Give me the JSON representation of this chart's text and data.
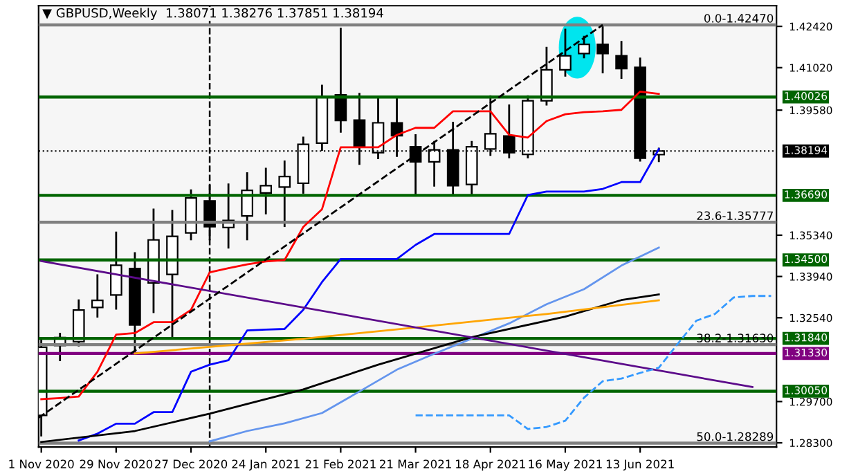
{
  "chart_data": {
    "type": "candlestick",
    "title": "▼ GBPUSD,Weekly  1.38071 1.38276 1.37851 1.38194",
    "x": [
      "2020-11-01",
      "2020-11-08",
      "2020-11-15",
      "2020-11-22",
      "2020-11-29",
      "2020-12-06",
      "2020-12-13",
      "2020-12-20",
      "2020-12-27",
      "2021-01-03",
      "2021-01-10",
      "2021-01-17",
      "2021-01-24",
      "2021-01-31",
      "2021-02-07",
      "2021-02-14",
      "2021-02-21",
      "2021-02-28",
      "2021-03-07",
      "2021-03-14",
      "2021-03-21",
      "2021-03-28",
      "2021-04-04",
      "2021-04-11",
      "2021-04-18",
      "2021-04-25",
      "2021-05-02",
      "2021-05-09",
      "2021-05-16",
      "2021-05-23",
      "2021-05-30",
      "2021-06-06",
      "2021-06-13",
      "2021-06-20"
    ],
    "ohlc": [
      [
        1.2923,
        1.3177,
        1.2855,
        1.3154
      ],
      [
        1.316,
        1.32,
        1.311,
        1.3187
      ],
      [
        1.3173,
        1.3313,
        1.316,
        1.328
      ],
      [
        1.3289,
        1.3398,
        1.3258,
        1.3313
      ],
      [
        1.3331,
        1.3543,
        1.3285,
        1.3432
      ],
      [
        1.3421,
        1.3473,
        1.3133,
        1.323
      ],
      [
        1.3372,
        1.3621,
        1.3273,
        1.3518
      ],
      [
        1.3401,
        1.3616,
        1.3188,
        1.353
      ],
      [
        1.3542,
        1.3686,
        1.352,
        1.366
      ],
      [
        1.365,
        1.3702,
        1.352,
        1.3563
      ],
      [
        1.356,
        1.3706,
        1.3492,
        1.3584
      ],
      [
        1.3599,
        1.3744,
        1.352,
        1.3686
      ],
      [
        1.3677,
        1.3759,
        1.3608,
        1.3702
      ],
      [
        1.3697,
        1.3784,
        1.3565,
        1.3733
      ],
      [
        1.371,
        1.3865,
        1.3678,
        1.3842
      ],
      [
        1.3846,
        1.4041,
        1.3823,
        1.4002
      ],
      [
        1.401,
        1.4234,
        1.3885,
        1.3923
      ],
      [
        1.3924,
        1.4013,
        1.3776,
        1.3834
      ],
      [
        1.3814,
        1.4002,
        1.3795,
        1.3915
      ],
      [
        1.3915,
        1.3997,
        1.3803,
        1.3871
      ],
      [
        1.3834,
        1.3873,
        1.367,
        1.3783
      ],
      [
        1.3783,
        1.385,
        1.3702,
        1.3823
      ],
      [
        1.3823,
        1.3915,
        1.367,
        1.3702
      ],
      [
        1.3706,
        1.385,
        1.367,
        1.3834
      ],
      [
        1.3826,
        1.4005,
        1.3806,
        1.3878
      ],
      [
        1.387,
        1.3974,
        1.3798,
        1.3814
      ],
      [
        1.3808,
        1.4005,
        1.3798,
        1.399
      ],
      [
        1.399,
        1.4169,
        1.3977,
        1.4095
      ],
      [
        1.4095,
        1.4231,
        1.4075,
        1.4142
      ],
      [
        1.415,
        1.4207,
        1.4137,
        1.4181
      ],
      [
        1.4181,
        1.4247,
        1.4086,
        1.415
      ],
      [
        1.4142,
        1.4189,
        1.4067,
        1.4099
      ],
      [
        1.4103,
        1.4133,
        1.3787,
        1.3795
      ],
      [
        1.38071,
        1.38276,
        1.37851,
        1.38194
      ]
    ],
    "series": [
      {
        "type": "line",
        "color": "#ff0000",
        "line_style": "solid",
        "x": [
          "2020-11-01",
          "2020-11-08",
          "2020-11-15",
          "2020-11-22",
          "2020-11-29",
          "2020-12-06",
          "2020-12-13",
          "2020-12-20",
          "2020-12-27",
          "2021-01-03",
          "2021-01-10",
          "2021-01-17",
          "2021-01-24",
          "2021-01-31",
          "2021-02-07",
          "2021-02-14",
          "2021-02-21",
          "2021-02-28",
          "2021-03-07",
          "2021-03-14",
          "2021-03-21",
          "2021-03-28",
          "2021-04-04",
          "2021-04-11",
          "2021-04-18",
          "2021-04-25",
          "2021-05-02",
          "2021-05-09",
          "2021-05-16",
          "2021-05-23",
          "2021-05-30",
          "2021-06-06",
          "2021-06-13",
          "2021-06-20"
        ],
        "values": [
          1.2978,
          1.2982,
          1.2987,
          1.3071,
          1.3197,
          1.3202,
          1.3239,
          1.3239,
          1.3281,
          1.3408,
          1.3422,
          1.3435,
          1.3445,
          1.345,
          1.3562,
          1.3622,
          1.3832,
          1.3832,
          1.3832,
          1.3874,
          1.3898,
          1.3898,
          1.3954,
          1.3954,
          1.3954,
          1.3874,
          1.3865,
          1.3921,
          1.3944,
          1.3951,
          1.3954,
          1.3959,
          1.4021,
          1.4013
        ]
      },
      {
        "type": "line",
        "color": "#0000ff",
        "line_style": "solid",
        "x": [
          "2020-11-15",
          "2020-11-22",
          "2020-11-29",
          "2020-12-06",
          "2020-12-13",
          "2020-12-20",
          "2020-12-27",
          "2021-01-03",
          "2021-01-10",
          "2021-01-17",
          "2021-01-24",
          "2021-01-31",
          "2021-02-07",
          "2021-02-14",
          "2021-02-21",
          "2021-02-28",
          "2021-03-07",
          "2021-03-14",
          "2021-03-21",
          "2021-03-28",
          "2021-04-04",
          "2021-04-11",
          "2021-04-18",
          "2021-04-25",
          "2021-05-02",
          "2021-05-09",
          "2021-05-16",
          "2021-05-23",
          "2021-05-30",
          "2021-06-06",
          "2021-06-13",
          "2021-06-20"
        ],
        "values": [
          1.2838,
          1.2861,
          1.2895,
          1.2895,
          1.2934,
          1.2934,
          1.3071,
          1.3095,
          1.311,
          1.3211,
          1.3214,
          1.3216,
          1.3281,
          1.3375,
          1.3453,
          1.3453,
          1.3453,
          1.3453,
          1.3501,
          1.3538,
          1.3538,
          1.3538,
          1.3538,
          1.3538,
          1.367,
          1.3682,
          1.3682,
          1.3682,
          1.3691,
          1.3714,
          1.3714,
          1.3826
        ]
      },
      {
        "type": "line",
        "color": "#6495ed",
        "line_style": "solid",
        "x": [
          "2021-01-03",
          "2021-01-17",
          "2021-01-31",
          "2021-02-14",
          "2021-02-28",
          "2021-03-14",
          "2021-03-28",
          "2021-04-11",
          "2021-04-25",
          "2021-05-09",
          "2021-05-23",
          "2021-06-06",
          "2021-06-20"
        ],
        "values": [
          1.2835,
          1.287,
          1.2896,
          1.2931,
          1.3004,
          1.3078,
          1.3132,
          1.3183,
          1.3235,
          1.33,
          1.3351,
          1.3431,
          1.3492
        ]
      },
      {
        "type": "line",
        "color": "#000000",
        "line_style": "solid",
        "x": [
          "2020-11-01",
          "2020-12-06",
          "2021-01-03",
          "2021-02-07",
          "2021-03-07",
          "2021-04-11",
          "2021-05-16",
          "2021-06-06",
          "2021-06-20"
        ],
        "values": [
          1.2833,
          1.287,
          1.2929,
          1.3011,
          1.3095,
          1.3188,
          1.3258,
          1.3314,
          1.3333
        ]
      },
      {
        "type": "line",
        "color": "#ffa500",
        "line_style": "solid",
        "x": [
          "2020-12-06",
          "2021-02-07",
          "2021-03-21",
          "2021-05-09",
          "2021-06-20"
        ],
        "values": [
          1.3133,
          1.3183,
          1.3221,
          1.3267,
          1.3313
        ]
      },
      {
        "type": "line",
        "color": "#5c0b8a",
        "line_style": "solid",
        "x": [
          "2020-11-01",
          "2021-07-25"
        ],
        "values": [
          1.3446,
          1.3019
        ]
      },
      {
        "type": "line",
        "color": "#000000",
        "line_style": "dashed",
        "x": [
          "2020-10-31",
          "2021-05-30"
        ],
        "values": [
          1.2915,
          1.4247
        ]
      },
      {
        "type": "line",
        "color": "#3399ff",
        "line_style": "dashed",
        "x": [
          "2021-03-21",
          "2021-03-28",
          "2021-04-04",
          "2021-04-11",
          "2021-04-18",
          "2021-04-25",
          "2021-05-02",
          "2021-05-09",
          "2021-05-16",
          "2021-05-23",
          "2021-05-30",
          "2021-06-06",
          "2021-06-13",
          "2021-06-20",
          "2021-06-27",
          "2021-07-04",
          "2021-07-11",
          "2021-07-18",
          "2021-07-25",
          "2021-08-01"
        ],
        "values": [
          1.2923,
          1.2923,
          1.2923,
          1.2923,
          1.2923,
          1.2923,
          1.2877,
          1.2884,
          1.2905,
          1.2983,
          1.3039,
          1.3048,
          1.3067,
          1.3085,
          1.3165,
          1.3244,
          1.3267,
          1.3323,
          1.3328,
          1.3328
        ]
      }
    ],
    "xlim": [
      "2020-10-31",
      "2021-08-03"
    ],
    "ylim": [
      1.2816,
      1.4312
    ],
    "xticks": [
      {
        "value": "2020-11-01",
        "label": "1 Nov 2020"
      },
      {
        "value": "2020-11-29",
        "label": "29 Nov 2020"
      },
      {
        "value": "2020-12-27",
        "label": "27 Dec 2020"
      },
      {
        "value": "2021-01-24",
        "label": "24 Jan 2021"
      },
      {
        "value": "2021-02-21",
        "label": "21 Feb 2021"
      },
      {
        "value": "2021-03-21",
        "label": "21 Mar 2021"
      },
      {
        "value": "2021-04-18",
        "label": "18 Apr 2021"
      },
      {
        "value": "2021-05-16",
        "label": "16 May 2021"
      },
      {
        "value": "2021-06-13",
        "label": "13 Jun 2021"
      }
    ],
    "yticks": [
      {
        "value": 1.4242,
        "label": "1.42420"
      },
      {
        "value": 1.4102,
        "label": "1.41020"
      },
      {
        "value": 1.3958,
        "label": "1.39580"
      },
      {
        "value": 1.3534,
        "label": "1.35340"
      },
      {
        "value": 1.3394,
        "label": "1.33940"
      },
      {
        "value": 1.3254,
        "label": "1.32540"
      },
      {
        "value": 1.297,
        "label": "1.29700"
      },
      {
        "value": 1.283,
        "label": "1.28300"
      }
    ],
    "ref_lines": [
      {
        "axis": "y",
        "value": 1.4247,
        "color": "#808080",
        "line_style": "solid"
      },
      {
        "axis": "y",
        "value": 1.35777,
        "color": "#808080",
        "line_style": "solid"
      },
      {
        "axis": "y",
        "value": 1.3163,
        "color": "#808080",
        "line_style": "solid"
      },
      {
        "axis": "y",
        "value": 1.28289,
        "color": "#808080",
        "line_style": "solid"
      },
      {
        "axis": "y",
        "value": 1.38194,
        "label": "1.38194",
        "color": "#000000",
        "line_style": "dotted"
      },
      {
        "axis": "y",
        "value": 1.40026,
        "label": "1.40026",
        "color": "#006400",
        "line_style": "solid"
      },
      {
        "axis": "y",
        "value": 1.3669,
        "label": "1.36690",
        "color": "#006400",
        "line_style": "solid"
      },
      {
        "axis": "y",
        "value": 1.345,
        "label": "1.34500",
        "color": "#006400",
        "line_style": "solid"
      },
      {
        "axis": "y",
        "value": 1.3184,
        "label": "1.31840",
        "color": "#006400",
        "line_style": "solid"
      },
      {
        "axis": "y",
        "value": 1.3133,
        "label": "1.31330",
        "color": "#800080",
        "line_style": "solid"
      },
      {
        "axis": "y",
        "value": 1.3005,
        "label": "1.30050",
        "color": "#006400",
        "line_style": "solid"
      },
      {
        "axis": "x",
        "value": "2021-01-03",
        "color": "#000000",
        "line_style": "dashed"
      }
    ],
    "annotations": [
      {
        "text": "0.0-1.42470",
        "x": "2021-08-02",
        "y": 1.4247
      },
      {
        "text": "23.6-1.35777",
        "x": "2021-08-02",
        "y": 1.35777
      },
      {
        "text": "38.2-1.31630",
        "x": "2021-08-02",
        "y": 1.3163
      },
      {
        "text": "50.0-1.28289",
        "x": "2021-08-02",
        "y": 1.28289
      }
    ]
  }
}
